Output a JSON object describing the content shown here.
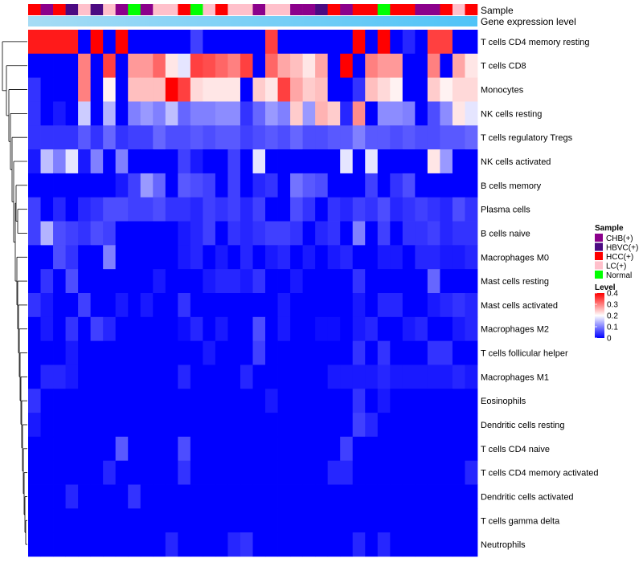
{
  "chart_data": {
    "type": "heatmap",
    "title": "",
    "annotation_rows": [
      "Sample",
      "Gene expression level"
    ],
    "row_labels": [
      "T cells CD4 memory resting",
      "T cells CD8",
      "Monocytes",
      "NK cells resting",
      "T cells regulatory  Tregs",
      "NK cells activated",
      "B cells memory",
      "Plasma cells",
      "B cells naive",
      "Macrophages M0",
      "Mast cells resting",
      "Mast cells activated",
      "Macrophages M2",
      "T cells follicular helper",
      "Macrophages M1",
      "Eosinophils",
      "Dendritic cells resting",
      "T cells CD4 naive",
      "T cells CD4 memory activated",
      "Dendritic cells activated",
      "T cells gamma delta",
      "Neutrophils"
    ],
    "sample_groups": [
      "HCC(+)",
      "CHB(+)",
      "HCC(+)",
      "HBVC(+)",
      "LC(+)",
      "HBVC(+)",
      "LC(+)",
      "CHB(+)",
      "Normal",
      "CHB(+)",
      "LC(+)",
      "LC(+)",
      "HCC(+)",
      "Normal",
      "LC(+)",
      "HCC(+)",
      "LC(+)",
      "LC(+)",
      "CHB(+)",
      "LC(+)",
      "LC(+)",
      "CHB(+)",
      "CHB(+)",
      "HBVC(+)",
      "HCC(+)",
      "CHB(+)",
      "HCC(+)",
      "HCC(+)",
      "Normal",
      "HCC(+)",
      "HCC(+)",
      "CHB(+)",
      "CHB(+)",
      "HCC(+)",
      "LC(+)",
      "HCC(+)"
    ],
    "values": [
      [
        0.38,
        0.38,
        0.38,
        0.38,
        0.0,
        0.4,
        0.0,
        0.4,
        0.0,
        0.0,
        0.0,
        0.0,
        0.0,
        0.05,
        0.0,
        0.0,
        0.0,
        0.0,
        0.0,
        0.35,
        0.0,
        0.0,
        0.0,
        0.0,
        0.0,
        0.0,
        0.4,
        0.0,
        0.4,
        0.0,
        0.03,
        0.0,
        0.35,
        0.35,
        0.0,
        0.0
      ],
      [
        0.0,
        0.0,
        0.0,
        0.0,
        0.3,
        0.0,
        0.35,
        0.0,
        0.28,
        0.28,
        0.32,
        0.22,
        0.18,
        0.35,
        0.34,
        0.32,
        0.3,
        0.35,
        0.0,
        0.32,
        0.27,
        0.25,
        0.22,
        0.27,
        0.0,
        0.4,
        0.0,
        0.3,
        0.28,
        0.28,
        0.0,
        0.0,
        0.3,
        0.0,
        0.27,
        0.22
      ],
      [
        0.04,
        0.0,
        0.0,
        0.0,
        0.3,
        0.0,
        0.21,
        0.0,
        0.25,
        0.25,
        0.25,
        0.4,
        0.35,
        0.23,
        0.22,
        0.22,
        0.22,
        0.0,
        0.24,
        0.22,
        0.35,
        0.27,
        0.24,
        0.25,
        0.0,
        0.0,
        0.04,
        0.25,
        0.23,
        0.21,
        0.0,
        0.0,
        0.24,
        0.21,
        0.23,
        0.23
      ],
      [
        0.04,
        0.0,
        0.02,
        0.0,
        0.16,
        0.0,
        0.14,
        0.0,
        0.1,
        0.12,
        0.1,
        0.15,
        0.08,
        0.1,
        0.1,
        0.11,
        0.11,
        0.04,
        0.08,
        0.12,
        0.1,
        0.24,
        0.12,
        0.26,
        0.24,
        0.03,
        0.29,
        0.0,
        0.11,
        0.11,
        0.1,
        0.0,
        0.06,
        0.11,
        0.22,
        0.18
      ],
      [
        0.04,
        0.04,
        0.04,
        0.04,
        0.07,
        0.04,
        0.08,
        0.04,
        0.05,
        0.05,
        0.08,
        0.06,
        0.06,
        0.07,
        0.06,
        0.07,
        0.07,
        0.05,
        0.06,
        0.07,
        0.06,
        0.08,
        0.06,
        0.06,
        0.07,
        0.07,
        0.1,
        0.07,
        0.07,
        0.06,
        0.07,
        0.06,
        0.06,
        0.07,
        0.07,
        0.08
      ],
      [
        0.02,
        0.15,
        0.1,
        0.18,
        0.02,
        0.1,
        0.0,
        0.1,
        0.0,
        0.0,
        0.0,
        0.0,
        0.05,
        0.02,
        0.0,
        0.0,
        0.05,
        0.0,
        0.18,
        0.0,
        0.0,
        0.0,
        0.0,
        0.0,
        0.0,
        0.18,
        0.0,
        0.18,
        0.0,
        0.0,
        0.0,
        0.0,
        0.22,
        0.12,
        0.0,
        0.0
      ],
      [
        0.0,
        0.0,
        0.0,
        0.0,
        0.0,
        0.0,
        0.0,
        0.02,
        0.05,
        0.12,
        0.08,
        0.0,
        0.07,
        0.06,
        0.05,
        0.0,
        0.05,
        0.0,
        0.03,
        0.04,
        0.0,
        0.09,
        0.07,
        0.06,
        0.0,
        0.0,
        0.0,
        0.05,
        0.0,
        0.04,
        0.06,
        0.0,
        0.0,
        0.0,
        0.0,
        0.0
      ],
      [
        0.05,
        0.0,
        0.03,
        0.0,
        0.03,
        0.04,
        0.06,
        0.06,
        0.05,
        0.05,
        0.06,
        0.04,
        0.04,
        0.03,
        0.05,
        0.04,
        0.05,
        0.03,
        0.05,
        0.0,
        0.0,
        0.06,
        0.04,
        0.0,
        0.04,
        0.03,
        0.05,
        0.04,
        0.06,
        0.03,
        0.04,
        0.05,
        0.04,
        0.03,
        0.06,
        0.04
      ],
      [
        0.05,
        0.14,
        0.06,
        0.05,
        0.04,
        0.06,
        0.05,
        0.0,
        0.0,
        0.0,
        0.0,
        0.0,
        0.02,
        0.03,
        0.05,
        0.0,
        0.04,
        0.03,
        0.04,
        0.05,
        0.05,
        0.04,
        0.0,
        0.03,
        0.04,
        0.0,
        0.1,
        0.0,
        0.05,
        0.0,
        0.04,
        0.04,
        0.05,
        0.03,
        0.04,
        0.04
      ],
      [
        0.0,
        0.0,
        0.06,
        0.04,
        0.0,
        0.0,
        0.1,
        0.0,
        0.0,
        0.0,
        0.0,
        0.0,
        0.02,
        0.03,
        0.0,
        0.02,
        0.0,
        0.03,
        0.0,
        0.02,
        0.03,
        0.0,
        0.02,
        0.0,
        0.02,
        0.03,
        0.0,
        0.0,
        0.02,
        0.02,
        0.0,
        0.03,
        0.03,
        0.02,
        0.02,
        0.03
      ],
      [
        0.0,
        0.04,
        0.0,
        0.06,
        0.0,
        0.0,
        0.0,
        0.0,
        0.0,
        0.0,
        0.02,
        0.0,
        0.0,
        0.0,
        0.02,
        0.03,
        0.03,
        0.02,
        0.04,
        0.0,
        0.0,
        0.02,
        0.0,
        0.0,
        0.0,
        0.0,
        0.04,
        0.0,
        0.0,
        0.0,
        0.0,
        0.0,
        0.08,
        0.0,
        0.0,
        0.0
      ],
      [
        0.04,
        0.02,
        0.0,
        0.0,
        0.05,
        0.0,
        0.0,
        0.02,
        0.0,
        0.02,
        0.0,
        0.0,
        0.04,
        0.0,
        0.0,
        0.0,
        0.0,
        0.0,
        0.0,
        0.0,
        0.02,
        0.0,
        0.0,
        0.0,
        0.0,
        0.0,
        0.02,
        0.0,
        0.03,
        0.03,
        0.0,
        0.0,
        0.02,
        0.03,
        0.04,
        0.03
      ],
      [
        0.0,
        0.02,
        0.0,
        0.04,
        0.0,
        0.05,
        0.03,
        0.0,
        0.0,
        0.0,
        0.0,
        0.0,
        0.01,
        0.03,
        0.0,
        0.02,
        0.0,
        0.0,
        0.06,
        0.0,
        0.02,
        0.0,
        0.0,
        0.01,
        0.01,
        0.0,
        0.02,
        0.03,
        0.0,
        0.0,
        0.02,
        0.03,
        0.0,
        0.0,
        0.02,
        0.03
      ],
      [
        0.0,
        0.0,
        0.0,
        0.02,
        0.0,
        0.0,
        0.0,
        0.0,
        0.0,
        0.0,
        0.0,
        0.0,
        0.0,
        0.0,
        0.02,
        0.0,
        0.0,
        0.0,
        0.05,
        0.0,
        0.0,
        0.0,
        0.0,
        0.0,
        0.0,
        0.0,
        0.04,
        0.0,
        0.04,
        0.0,
        0.0,
        0.0,
        0.04,
        0.04,
        0.0,
        0.0
      ],
      [
        0.0,
        0.03,
        0.03,
        0.02,
        0.0,
        0.0,
        0.0,
        0.0,
        0.0,
        0.0,
        0.0,
        0.0,
        0.03,
        0.0,
        0.0,
        0.0,
        0.0,
        0.03,
        0.0,
        0.0,
        0.0,
        0.0,
        0.0,
        0.0,
        0.02,
        0.02,
        0.02,
        0.02,
        0.03,
        0.02,
        0.02,
        0.02,
        0.02,
        0.02,
        0.03,
        0.02
      ],
      [
        0.04,
        0.0,
        0.0,
        0.0,
        0.0,
        0.0,
        0.0,
        0.0,
        0.0,
        0.0,
        0.0,
        0.0,
        0.0,
        0.0,
        0.0,
        0.0,
        0.0,
        0.0,
        0.0,
        0.02,
        0.0,
        0.0,
        0.0,
        0.0,
        0.0,
        0.0,
        0.04,
        0.0,
        0.02,
        0.0,
        0.0,
        0.0,
        0.0,
        0.0,
        0.0,
        0.0
      ],
      [
        0.02,
        0.0,
        0.0,
        0.0,
        0.0,
        0.0,
        0.0,
        0.0,
        0.0,
        0.0,
        0.0,
        0.0,
        0.0,
        0.0,
        0.0,
        0.0,
        0.0,
        0.0,
        0.0,
        0.0,
        0.0,
        0.0,
        0.0,
        0.0,
        0.0,
        0.0,
        0.05,
        0.03,
        0.0,
        0.0,
        0.0,
        0.0,
        0.0,
        0.0,
        0.0,
        0.0
      ],
      [
        0.0,
        0.0,
        0.0,
        0.0,
        0.0,
        0.0,
        0.0,
        0.07,
        0.0,
        0.0,
        0.0,
        0.0,
        0.06,
        0.0,
        0.0,
        0.0,
        0.0,
        0.0,
        0.0,
        0.0,
        0.0,
        0.0,
        0.0,
        0.0,
        0.0,
        0.05,
        0.0,
        0.0,
        0.0,
        0.0,
        0.0,
        0.0,
        0.0,
        0.0,
        0.0,
        0.0
      ],
      [
        0.0,
        0.0,
        0.0,
        0.0,
        0.0,
        0.0,
        0.03,
        0.0,
        0.0,
        0.0,
        0.0,
        0.0,
        0.04,
        0.0,
        0.0,
        0.0,
        0.0,
        0.0,
        0.0,
        0.0,
        0.0,
        0.0,
        0.0,
        0.0,
        0.03,
        0.03,
        0.0,
        0.0,
        0.0,
        0.0,
        0.0,
        0.0,
        0.0,
        0.0,
        0.0,
        0.03
      ],
      [
        0.0,
        0.0,
        0.0,
        0.03,
        0.0,
        0.0,
        0.0,
        0.0,
        0.04,
        0.0,
        0.0,
        0.0,
        0.0,
        0.0,
        0.0,
        0.0,
        0.0,
        0.0,
        0.0,
        0.0,
        0.0,
        0.0,
        0.0,
        0.0,
        0.0,
        0.0,
        0.0,
        0.0,
        0.0,
        0.0,
        0.0,
        0.0,
        0.0,
        0.0,
        0.0,
        0.0
      ],
      [
        0.0,
        0.0,
        0.0,
        0.0,
        0.0,
        0.0,
        0.0,
        0.0,
        0.0,
        0.0,
        0.0,
        0.0,
        0.0,
        0.0,
        0.0,
        0.0,
        0.0,
        0.0,
        0.0,
        0.0,
        0.0,
        0.0,
        0.0,
        0.0,
        0.0,
        0.0,
        0.0,
        0.0,
        0.0,
        0.0,
        0.0,
        0.0,
        0.0,
        0.0,
        0.0,
        0.0
      ],
      [
        0.0,
        0.0,
        0.0,
        0.0,
        0.0,
        0.0,
        0.0,
        0.0,
        0.0,
        0.0,
        0.0,
        0.03,
        0.0,
        0.0,
        0.0,
        0.0,
        0.03,
        0.04,
        0.0,
        0.0,
        0.0,
        0.0,
        0.0,
        0.0,
        0.0,
        0.0,
        0.03,
        0.0,
        0.03,
        0.0,
        0.0,
        0.0,
        0.0,
        0.0,
        0.0,
        0.0
      ]
    ],
    "legend": {
      "sample_title": "Sample",
      "sample_entries": [
        {
          "label": "CHB(+)",
          "color": "#8b008b"
        },
        {
          "label": "HBVC(+)",
          "color": "#4b0a82"
        },
        {
          "label": "HCC(+)",
          "color": "#ff0000"
        },
        {
          "label": "LC(+)",
          "color": "#ffc0cb"
        },
        {
          "label": "Normal",
          "color": "#00ff00"
        }
      ],
      "level_title": "Level",
      "level_ticks": [
        "0.4",
        "0.3",
        "0.2",
        "0.1",
        "0"
      ],
      "level_range": [
        0,
        0.4
      ],
      "level_colors": [
        "#0000ff",
        "#ffffff",
        "#ff0000"
      ]
    },
    "expression_bar_colors": [
      "#a6dcf5",
      "#4fc3f7"
    ],
    "grid": false
  }
}
